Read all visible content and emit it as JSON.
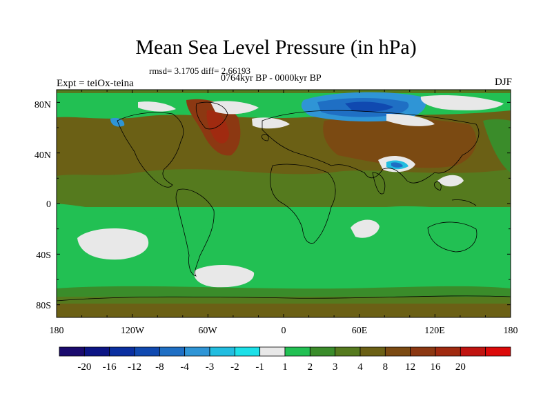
{
  "title": "Mean Sea Level Pressure (in hPa)",
  "stats": "rmsd= 3.1705 diff= 2.66193",
  "period": "0764kyr BP - 0000kyr BP",
  "expt": "Expt = teiOx-teina",
  "season": "DJF",
  "axes": {
    "lon_labels": [
      "180",
      "120W",
      "60W",
      "0",
      "60E",
      "120E",
      "180"
    ],
    "lat_labels": [
      "80N",
      "40N",
      "0",
      "40S",
      "80S"
    ]
  },
  "colorbar": {
    "colors": [
      "#1a0a6e",
      "#0c1585",
      "#0a2fa0",
      "#1049b0",
      "#1f6fc4",
      "#2f95d6",
      "#22bde0",
      "#1ce0e8",
      "#e8e8e8",
      "#22c053",
      "#3a8c2a",
      "#557a1e",
      "#6b6015",
      "#7b4a12",
      "#8c3812",
      "#a02a10",
      "#c01410",
      "#dc0a0a"
    ],
    "labels": [
      "-20",
      "-16",
      "-12",
      "-8",
      "-4",
      "-3",
      "-2",
      "-1",
      "1",
      "2",
      "3",
      "4",
      "8",
      "12",
      "16",
      "20"
    ]
  },
  "chart_data": {
    "type": "heatmap",
    "variable": "Mean Sea Level Pressure",
    "units": "hPa",
    "xlim": [
      -180,
      180
    ],
    "ylim": [
      -90,
      90
    ],
    "levels": [
      -20,
      -16,
      -12,
      -8,
      -4,
      -3,
      -2,
      -1,
      1,
      2,
      3,
      4,
      8,
      12,
      16,
      20
    ]
  }
}
